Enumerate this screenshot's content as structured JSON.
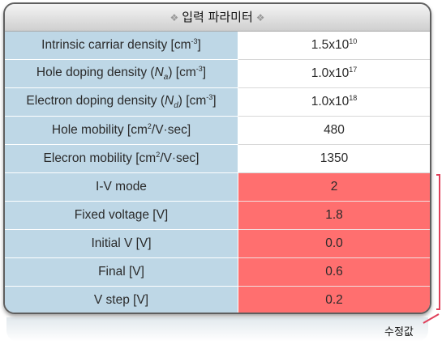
{
  "header": {
    "deco_left": "❖",
    "title": "입력 파라미터",
    "deco_right": "❖"
  },
  "rows": [
    {
      "label_parts": [
        "Intrinsic carriar density [cm",
        "-3",
        "]"
      ],
      "value_parts": [
        "1.5x10",
        "10",
        ""
      ]
    },
    {
      "label_parts": [
        "Hole doping density (",
        "N",
        "a",
        ") [cm",
        "-3",
        "]"
      ],
      "value_parts": [
        "1.0x10",
        "17",
        ""
      ]
    },
    {
      "label_parts": [
        "Electron doping density (",
        "N",
        "d",
        ") [cm",
        "-3",
        "]"
      ],
      "value_parts": [
        "1.0x10",
        "18",
        ""
      ]
    },
    {
      "label_parts": [
        "Hole mobility [cm",
        "2",
        "/V·sec]"
      ],
      "value": "480"
    },
    {
      "label_parts": [
        "Elecron mobility [cm",
        "2",
        "/V·sec]"
      ],
      "value": "1350"
    },
    {
      "label": "I-V mode",
      "value": "2"
    },
    {
      "label": "Fixed voltage [V]",
      "value": "1.8"
    },
    {
      "label": "Initial V [V]",
      "value": "0.0"
    },
    {
      "label": "Final [V]",
      "value": "0.6"
    },
    {
      "label": "V step [V]",
      "value": "0.2"
    }
  ],
  "annotation": {
    "label": "수정값"
  },
  "colors": {
    "label_bg": "#bed7e6",
    "modified_bg": "#ff6f6f",
    "bracket": "#e0405a"
  }
}
